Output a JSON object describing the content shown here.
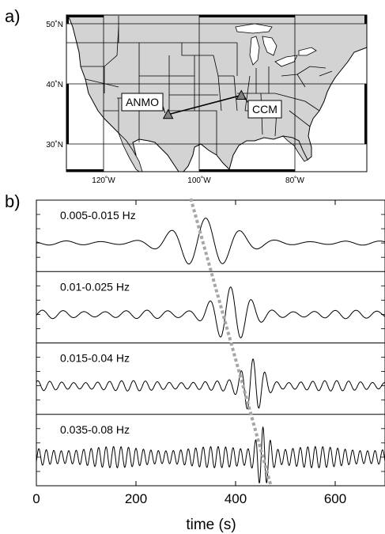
{
  "panel_a": {
    "label": "a)",
    "lat_ticks": [
      {
        "lat": 50,
        "text": "50˚N"
      },
      {
        "lat": 40,
        "text": "40˚N"
      },
      {
        "lat": 30,
        "text": "30˚N"
      }
    ],
    "lon_ticks": [
      {
        "lon": -120,
        "text": "120˚W"
      },
      {
        "lon": -100,
        "text": "100˚W"
      },
      {
        "lon": -80,
        "text": "80˚W"
      }
    ],
    "stations": [
      {
        "id": "ANMO",
        "label": "ANMO",
        "lon": -106.5,
        "lat": 34.9
      },
      {
        "id": "CCM",
        "label": "CCM",
        "lon": -91.2,
        "lat": 38.1
      }
    ],
    "colors": {
      "land": "#d3d3d3",
      "ocean": "#ffffff",
      "station": "#808080",
      "line": "#000000"
    }
  },
  "panel_b": {
    "label": "b)",
    "xlabel": "time (s)",
    "xlim": [
      0,
      700
    ],
    "xticks": [
      0,
      200,
      400,
      600
    ],
    "traces": [
      {
        "label": "0.005-0.015 Hz",
        "arrival": 340,
        "period": 70,
        "noise_amp": 0.09,
        "packet_amp": 1.0
      },
      {
        "label": "0.01-0.025 Hz",
        "arrival": 390,
        "period": 42,
        "noise_amp": 0.18,
        "packet_amp": 1.0
      },
      {
        "label": "0.015-0.04 Hz",
        "arrival": 435,
        "period": 24,
        "noise_amp": 0.22,
        "packet_amp": 0.95
      },
      {
        "label": "0.035-0.08 Hz",
        "arrival": 455,
        "period": 15,
        "noise_amp": 0.45,
        "packet_amp": 1.0
      }
    ],
    "moveout_line": {
      "t_start": 310,
      "t_end": 470,
      "color": "#a6a6a6"
    }
  }
}
